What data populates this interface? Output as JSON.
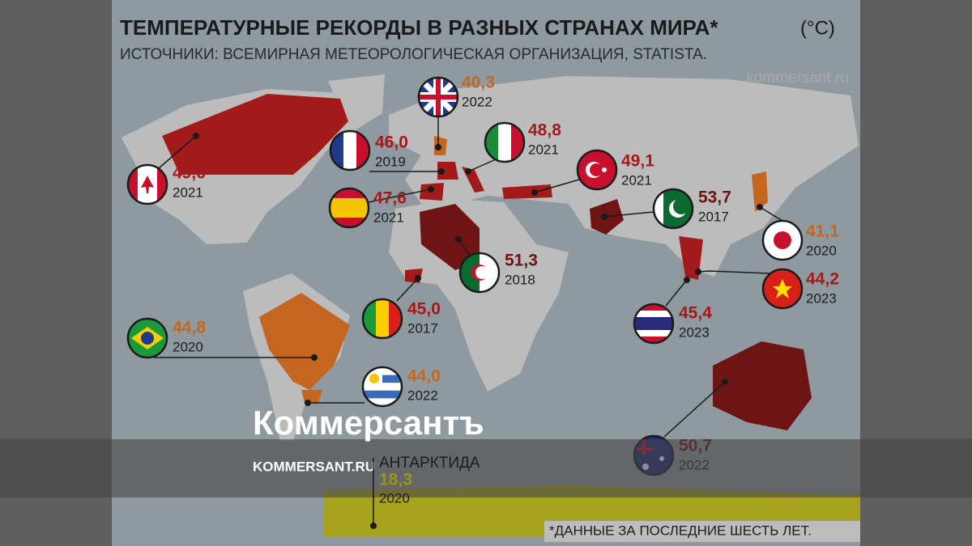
{
  "header": {
    "title": "ТЕМПЕРАТУРНЫЕ РЕКОРДЫ В РАЗНЫХ СТРАНАХ МИРА*",
    "unit": "(°C)",
    "source": "ИСТОЧНИКИ: ВСЕМИРНАЯ МЕТЕОРОЛОГИЧЕСКАЯ ОРГАНИЗАЦИЯ, STATISTA.",
    "site": "kommersant.ru"
  },
  "records": [
    {
      "value": "40,3",
      "year": "2022",
      "tone": "orange"
    },
    {
      "value": "46,0",
      "year": "2019",
      "tone": "red"
    },
    {
      "value": "48,8",
      "year": "2021",
      "tone": "red"
    },
    {
      "value": "49,1",
      "year": "2021",
      "tone": "red"
    },
    {
      "value": "49,6",
      "year": "2021",
      "tone": "red"
    },
    {
      "value": "47,6",
      "year": "2021",
      "tone": "red"
    },
    {
      "value": "53,7",
      "year": "2017",
      "tone": "dark"
    },
    {
      "value": "41,1",
      "year": "2020",
      "tone": "orange"
    },
    {
      "value": "51,3",
      "year": "2018",
      "tone": "dark"
    },
    {
      "value": "44,2",
      "year": "2023",
      "tone": "red"
    },
    {
      "value": "45,0",
      "year": "2017",
      "tone": "red"
    },
    {
      "value": "45,4",
      "year": "2023",
      "tone": "red"
    },
    {
      "value": "44,8",
      "year": "2020",
      "tone": "orange"
    },
    {
      "value": "44,0",
      "year": "2022",
      "tone": "orange"
    },
    {
      "value": "50,7",
      "year": "2022",
      "tone": "dark"
    }
  ],
  "antarctica": {
    "name": "АНТАРКТИДА",
    "value": "18,3",
    "year": "2020"
  },
  "footnote": "*ДАННЫЕ ЗА ПОСЛЕДНИЕ ШЕСТЬ ЛЕТ.",
  "watermark": {
    "brand": "Коммерсантъ",
    "url": "KOMMERSANT.RU"
  }
}
